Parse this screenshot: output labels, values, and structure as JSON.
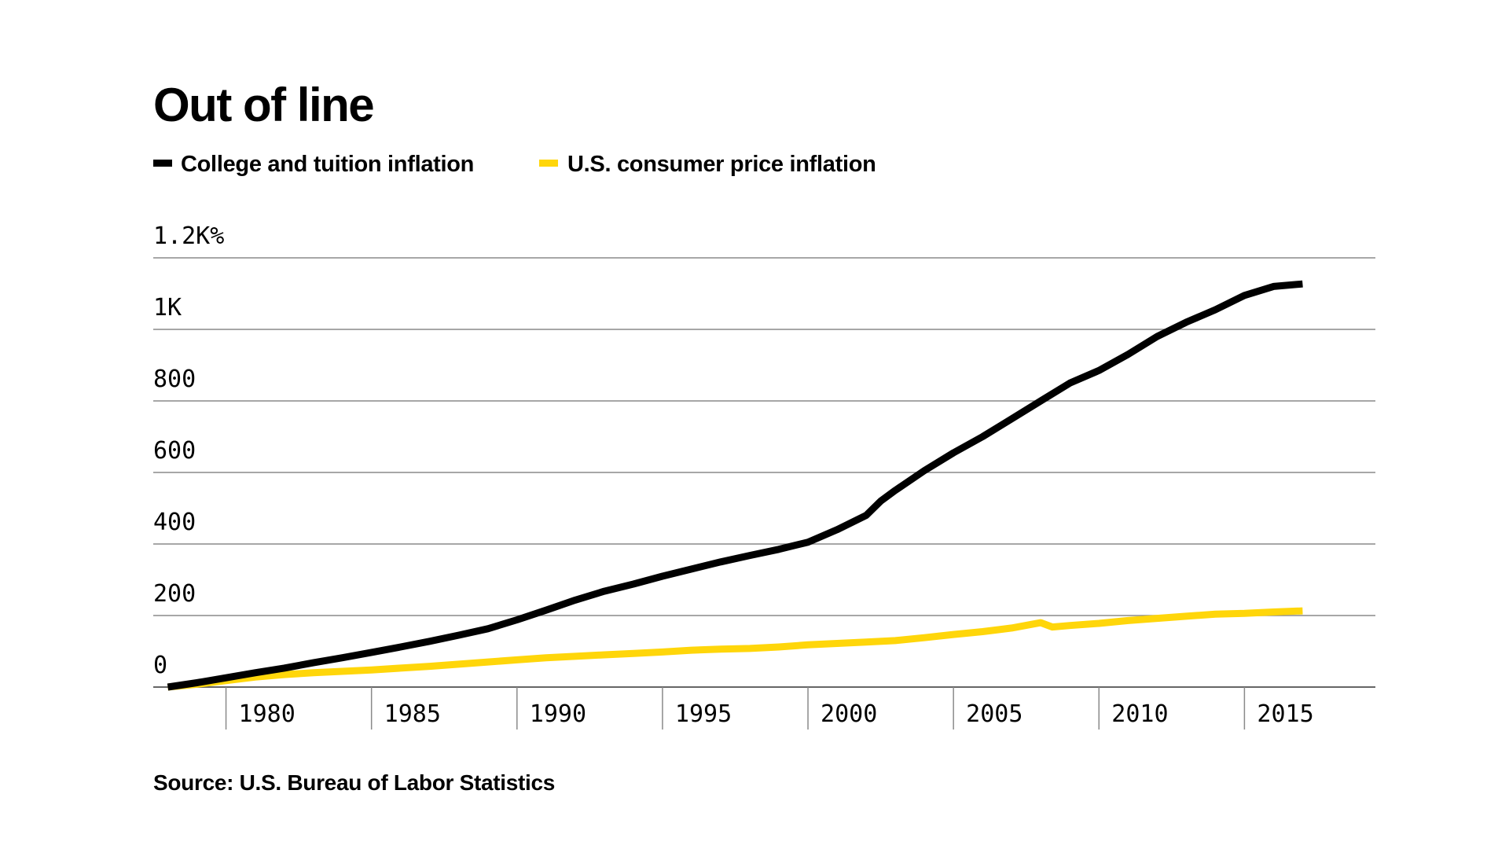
{
  "chart_data": {
    "type": "line",
    "title": "Out of line",
    "source": "Source: U.S. Bureau of Labor Statistics",
    "xlim": [
      1977.5,
      2019.5
    ],
    "ylim": [
      0,
      1200
    ],
    "y_ticks": [
      {
        "value": 0,
        "label": "0"
      },
      {
        "value": 200,
        "label": "200"
      },
      {
        "value": 400,
        "label": "400"
      },
      {
        "value": 600,
        "label": "600"
      },
      {
        "value": 800,
        "label": "800"
      },
      {
        "value": 1000,
        "label": "1K"
      },
      {
        "value": 1200,
        "label": "1.2K%"
      }
    ],
    "x_ticks": [
      {
        "value": 1980,
        "label": "1980"
      },
      {
        "value": 1985,
        "label": "1985"
      },
      {
        "value": 1990,
        "label": "1990"
      },
      {
        "value": 1995,
        "label": "1995"
      },
      {
        "value": 2000,
        "label": "2000"
      },
      {
        "value": 2005,
        "label": "2005"
      },
      {
        "value": 2010,
        "label": "2010"
      },
      {
        "value": 2015,
        "label": "2015"
      }
    ],
    "grid": true,
    "legend_position": "top-left",
    "series": [
      {
        "name": "College and tuition inflation",
        "color": "#000000",
        "x": [
          1978,
          1979,
          1980,
          1981,
          1982,
          1983,
          1984,
          1985,
          1986,
          1987,
          1988,
          1989,
          1990,
          1991,
          1992,
          1993,
          1994,
          1995,
          1996,
          1997,
          1998,
          1999,
          2000,
          2001,
          2002,
          2002.5,
          2003,
          2004,
          2005,
          2006,
          2007,
          2008,
          2009,
          2010,
          2011,
          2012,
          2013,
          2014,
          2015,
          2016,
          2017
        ],
        "y": [
          0,
          12,
          26,
          40,
          53,
          68,
          82,
          97,
          112,
          128,
          145,
          163,
          188,
          215,
          243,
          268,
          288,
          310,
          330,
          350,
          368,
          385,
          405,
          440,
          480,
          520,
          550,
          605,
          655,
          700,
          750,
          800,
          850,
          885,
          930,
          980,
          1020,
          1055,
          1095,
          1120,
          1127
        ]
      },
      {
        "name": "U.S. consumer price inflation",
        "color": "#ffd60a",
        "x": [
          1978,
          1979,
          1980,
          1981,
          1982,
          1983,
          1984,
          1985,
          1986,
          1987,
          1988,
          1989,
          1990,
          1991,
          1992,
          1993,
          1994,
          1995,
          1996,
          1997,
          1998,
          1999,
          2000,
          2001,
          2002,
          2003,
          2004,
          2005,
          2006,
          2007,
          2008,
          2008.4,
          2009,
          2010,
          2011,
          2012,
          2013,
          2014,
          2015,
          2016,
          2017
        ],
        "y": [
          0,
          8,
          18,
          28,
          35,
          40,
          44,
          48,
          53,
          58,
          64,
          70,
          76,
          82,
          86,
          90,
          94,
          98,
          103,
          106,
          108,
          112,
          118,
          122,
          126,
          130,
          138,
          147,
          155,
          165,
          180,
          168,
          172,
          178,
          186,
          192,
          198,
          204,
          206,
          210,
          213
        ]
      }
    ]
  }
}
